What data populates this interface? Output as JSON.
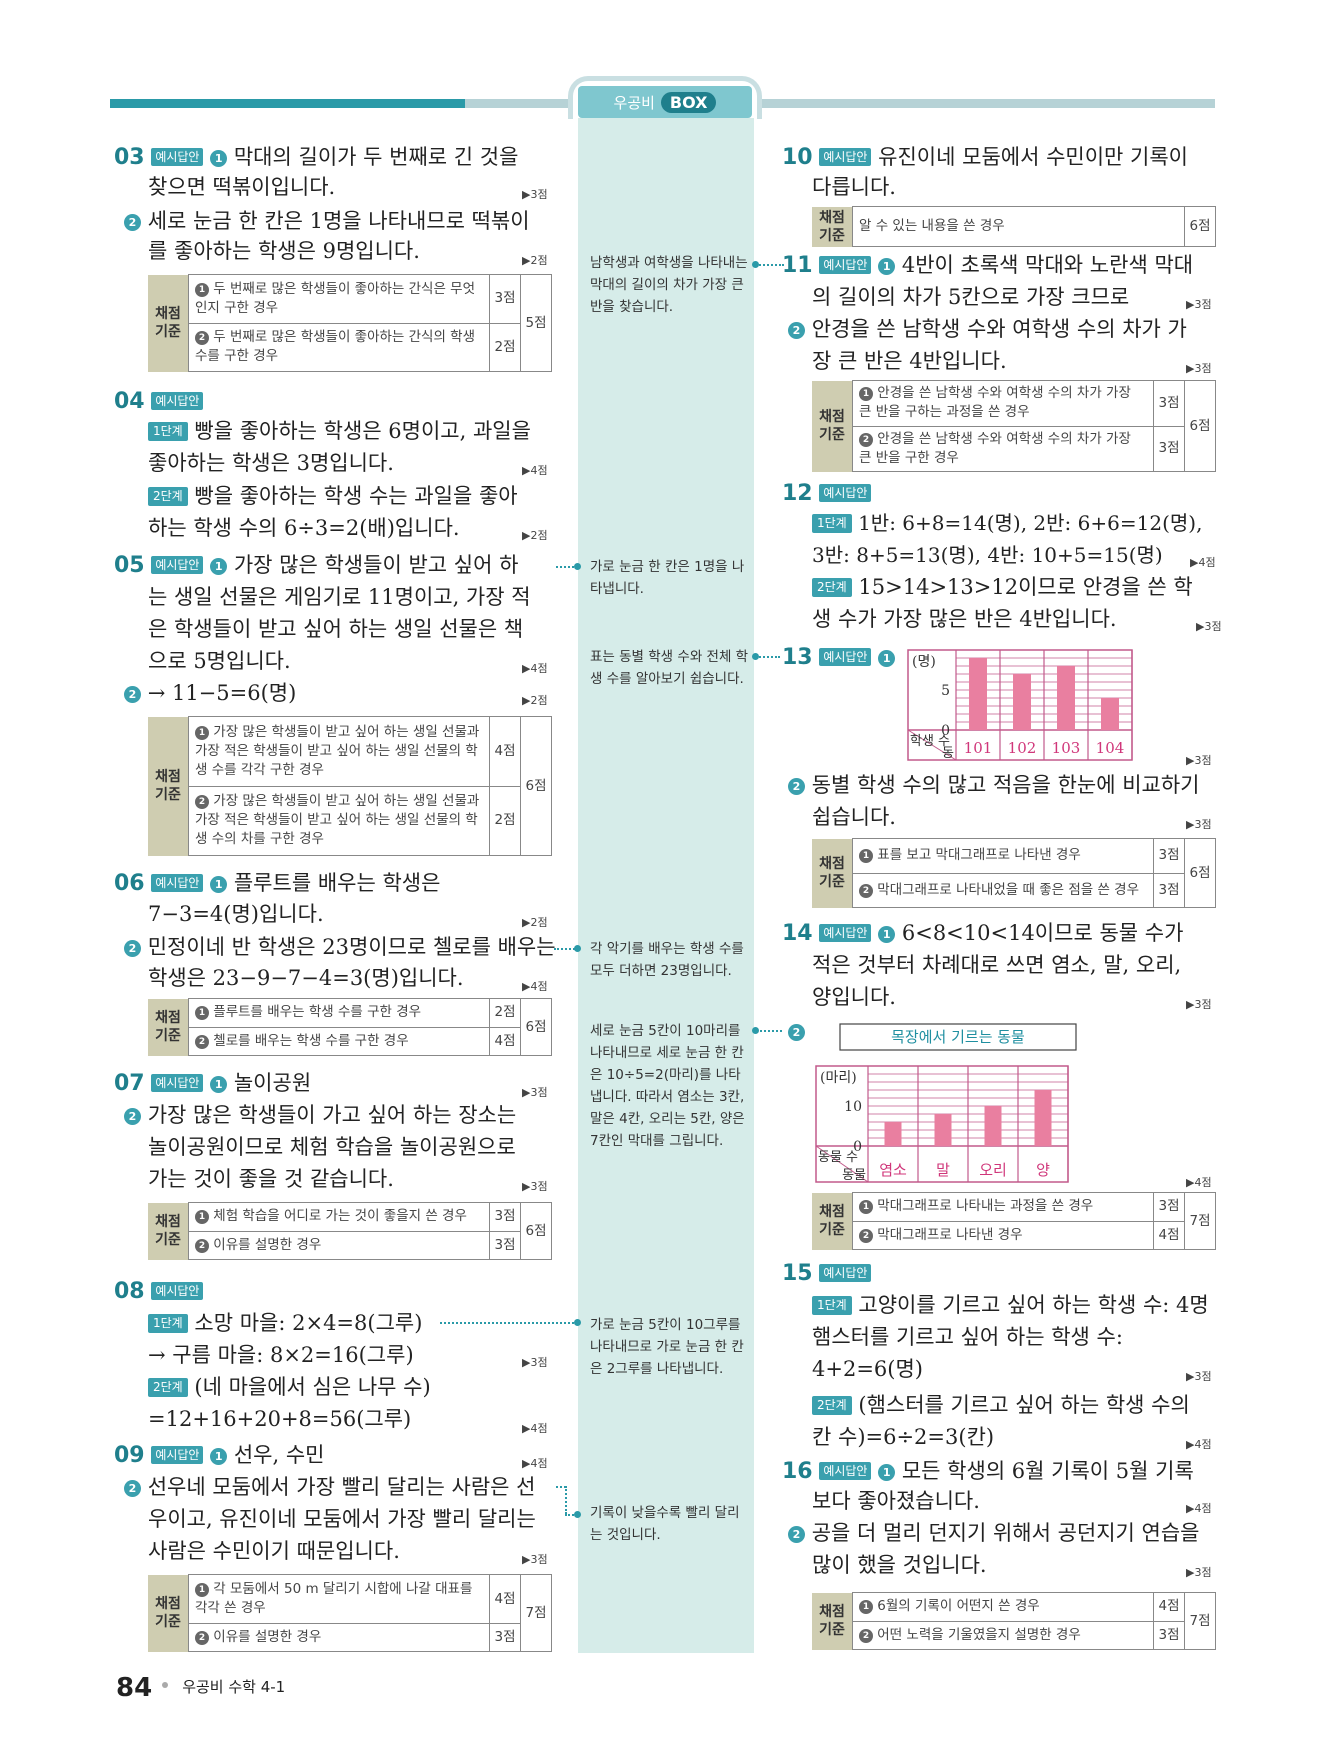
{
  "header": {
    "left": "우공비",
    "box": "BOX"
  },
  "footer": {
    "page": "84",
    "book": "우공비 수학 4-1"
  },
  "labels": {
    "example_answer": "예시답안",
    "step1": "1단계",
    "step2": "2단계",
    "grading": "채점 기준"
  },
  "q03": {
    "num": "03",
    "l1": "막대의 길이가 두 번째로 긴 것을",
    "l2": "찾으면 떡볶이입니다.",
    "p1": "▶3점",
    "l3": "세로 눈금 한 칸은 1명을 나타내므로 떡볶이",
    "l4": "를 좋아하는 학생은 9명입니다.",
    "p2": "▶2점",
    "g1": "두 번째로 많은 학생들이 좋아하는 간식은 무엇인지 구한 경우",
    "g1p": "3점",
    "g2": "두 번째로 많은 학생들이 좋아하는 간식의 학생 수를 구한 경우",
    "g2p": "2점",
    "tot": "5점"
  },
  "q04": {
    "num": "04",
    "l1": "빵을 좋아하는 학생은 6명이고, 과일을",
    "l2": "좋아하는 학생은 3명입니다.",
    "p1": "▶4점",
    "l3": "빵을 좋아하는 학생 수는 과일을 좋아",
    "l4": "하는 학생 수의 6÷3=2(배)입니다.",
    "p2": "▶2점"
  },
  "q05": {
    "num": "05",
    "l1": "가장 많은 학생들이 받고 싶어 하",
    "l2": "는 생일 선물은 게임기로 11명이고, 가장 적",
    "l3": "은 학생들이 받고 싶어 하는 생일 선물은 책",
    "l4": "으로 5명입니다.",
    "p1": "▶4점",
    "l5": "→ 11−5=6(명)",
    "p2": "▶2점",
    "g1": "가장 많은 학생들이 받고 싶어 하는 생일 선물과 가장 적은 학생들이 받고 싶어 하는 생일 선물의 학생 수를 각각 구한 경우",
    "g1p": "4점",
    "g2": "가장 많은 학생들이 받고 싶어 하는 생일 선물과 가장 적은 학생들이 받고 싶어 하는 생일 선물의 학생 수의 차를 구한 경우",
    "g2p": "2점",
    "tot": "6점"
  },
  "q06": {
    "num": "06",
    "l1": "플루트를 배우는 학생은",
    "l2": "7−3=4(명)입니다.",
    "p1": "▶2점",
    "l3": "민정이네 반 학생은 23명이므로 첼로를 배우는",
    "l4": "학생은 23−9−7−4=3(명)입니다.",
    "p2": "▶4점",
    "g1": "플루트를 배우는 학생 수를 구한 경우",
    "g1p": "2점",
    "g2": "첼로를 배우는 학생 수를 구한 경우",
    "g2p": "4점",
    "tot": "6점"
  },
  "q07": {
    "num": "07",
    "l1": "놀이공원",
    "p1": "▶3점",
    "l2": "가장 많은 학생들이 가고 싶어 하는 장소는",
    "l3": "놀이공원이므로 체험 학습을 놀이공원으로",
    "l4": "가는 것이 좋을 것 같습니다.",
    "p2": "▶3점",
    "g1": "체험 학습을 어디로 가는 것이 좋을지 쓴 경우",
    "g1p": "3점",
    "g2": "이유를 설명한 경우",
    "g2p": "3점",
    "tot": "6점"
  },
  "q08": {
    "num": "08",
    "l1": "소망 마을: 2×4=8(그루)",
    "l2": "→ 구름 마을: 8×2=16(그루)",
    "p1": "▶3점",
    "l3": "(네 마을에서 심은 나무 수)",
    "l4": "=12+16+20+8=56(그루)",
    "p2": "▶4점"
  },
  "q09": {
    "num": "09",
    "l1": "선우, 수민",
    "p1": "▶4점",
    "l2": "선우네 모둠에서 가장 빨리 달리는 사람은 선",
    "l3": "우이고, 유진이네 모둠에서 가장 빨리 달리는",
    "l4": "사람은 수민이기 때문입니다.",
    "p2": "▶3점",
    "g1": "각 모둠에서 50 m 달리기 시합에 나갈 대표를 각각 쓴 경우",
    "g1p": "4점",
    "g2": "이유를 설명한 경우",
    "g2p": "3점",
    "tot": "7점"
  },
  "notes": {
    "n1": "남학생과 여학생을 나타내는 막대의 길이의 차가 가장 큰 반을 찾습니다.",
    "n2": "가로 눈금 한 칸은 1명을 나타냅니다.",
    "n3": "표는 동별 학생 수와 전체 학생 수를 알아보기 쉽습니다.",
    "n4": "각 악기를 배우는 학생 수를 모두 더하면 23명입니다.",
    "n5": "세로 눈금 5칸이 10마리를 나타내므로 세로 눈금 한 칸은 10÷5=2(마리)를 나타냅니다. 따라서 염소는 3칸, 말은 4칸, 오리는 5칸, 양은 7칸인 막대를 그립니다.",
    "n6": "가로 눈금 5칸이 10그루를 나타내므로 가로 눈금 한 칸은 2그루를 나타냅니다.",
    "n7": "기록이 낮을수록 빨리 달리는 것입니다."
  },
  "q10": {
    "num": "10",
    "l1": "유진이네 모둠에서 수민이만 기록이",
    "l2": "다릅니다.",
    "g1": "알 수 있는 내용을 쓴 경우",
    "tot": "6점"
  },
  "q11": {
    "num": "11",
    "l1": "4반이 초록색 막대와 노란색 막대",
    "l2": "의 길이의 차가 5칸으로 가장 크므로",
    "p1": "▶3점",
    "l3": "안경을 쓴 남학생 수와 여학생 수의 차가 가",
    "l4": "장 큰 반은 4반입니다.",
    "p2": "▶3점",
    "g1": "안경을 쓴 남학생 수와 여학생 수의 차가 가장 큰 반을 구하는 과정을 쓴 경우",
    "g1p": "3점",
    "g2": "안경을 쓴 남학생 수와 여학생 수의 차가 가장 큰 반을 구한 경우",
    "g2p": "3점",
    "tot": "6점"
  },
  "q12": {
    "num": "12",
    "l1": "1반: 6+8=14(명), 2반: 6+6=12(명),",
    "l2": "3반: 8+5=13(명), 4반: 10+5=15(명)",
    "p1": "▶4점",
    "l3": "15>14>13>12이므로 안경을 쓴 학",
    "l4": "생 수가 가장 많은 반은 4반입니다.",
    "p2": "▶3점"
  },
  "q13": {
    "num": "13",
    "p1": "▶3점",
    "l1": "동별 학생 수의 많고 적음을 한눈에 비교하기",
    "l2": "쉽습니다.",
    "p2": "▶3점",
    "g1": "표를 보고 막대그래프로 나타낸 경우",
    "g1p": "3점",
    "g2": "막대그래프로 나타내었을 때 좋은 점을 쓴 경우",
    "g2p": "3점",
    "tot": "6점"
  },
  "q14": {
    "num": "14",
    "l1": "6<8<10<14이므로 동물 수가",
    "l2": "적은 것부터 차례대로 쓰면 염소, 말, 오리,",
    "l3": "양입니다.",
    "p1": "▶3점",
    "p2": "▶4점",
    "g1": "막대그래프로 나타내는 과정을 쓴 경우",
    "g1p": "3점",
    "g2": "막대그래프로 나타낸 경우",
    "g2p": "4점",
    "tot": "7점"
  },
  "q15": {
    "num": "15",
    "l1": "고양이를 기르고 싶어 하는 학생 수: 4명",
    "l2": "햄스터를 기르고 싶어 하는 학생 수:",
    "l3": "4+2=6(명)",
    "p1": "▶3점",
    "l4": "(햄스터를 기르고 싶어 하는 학생 수의",
    "l5": "칸 수)=6÷2=3(칸)",
    "p2": "▶4점"
  },
  "q16": {
    "num": "16",
    "l1": "모든 학생의 6월 기록이 5월 기록",
    "l2": "보다 좋아졌습니다.",
    "p1": "▶4점",
    "l3": "공을 더 멀리 던지기 위해서 공던지기 연습을",
    "l4": "많이 했을 것입니다.",
    "p2": "▶3점",
    "g1": "6월의 기록이 어떤지 쓴 경우",
    "g1p": "4점",
    "g2": "어떤 노력을 기울였을지 설명한 경우",
    "g2p": "3점",
    "tot": "7점"
  },
  "chart_data": [
    {
      "type": "bar",
      "unit_label": "(명)",
      "y_ticks": [
        "5",
        "0"
      ],
      "row_label": "학생 수",
      "col_label": "동",
      "categories": [
        "101",
        "102",
        "103",
        "104"
      ],
      "values": [
        9,
        7,
        8,
        4
      ],
      "ylim": [
        0,
        10
      ],
      "bar_color": "#e97fa0"
    },
    {
      "type": "bar",
      "title": "목장에서 기르는 동물",
      "unit_label": "(마리)",
      "y_ticks": [
        "10",
        "0"
      ],
      "row_label": "동물 수",
      "col_label": "동물",
      "categories": [
        "염소",
        "말",
        "오리",
        "양"
      ],
      "values": [
        6,
        8,
        10,
        14
      ],
      "ylim": [
        0,
        20
      ],
      "bar_color": "#e97fa0"
    }
  ]
}
